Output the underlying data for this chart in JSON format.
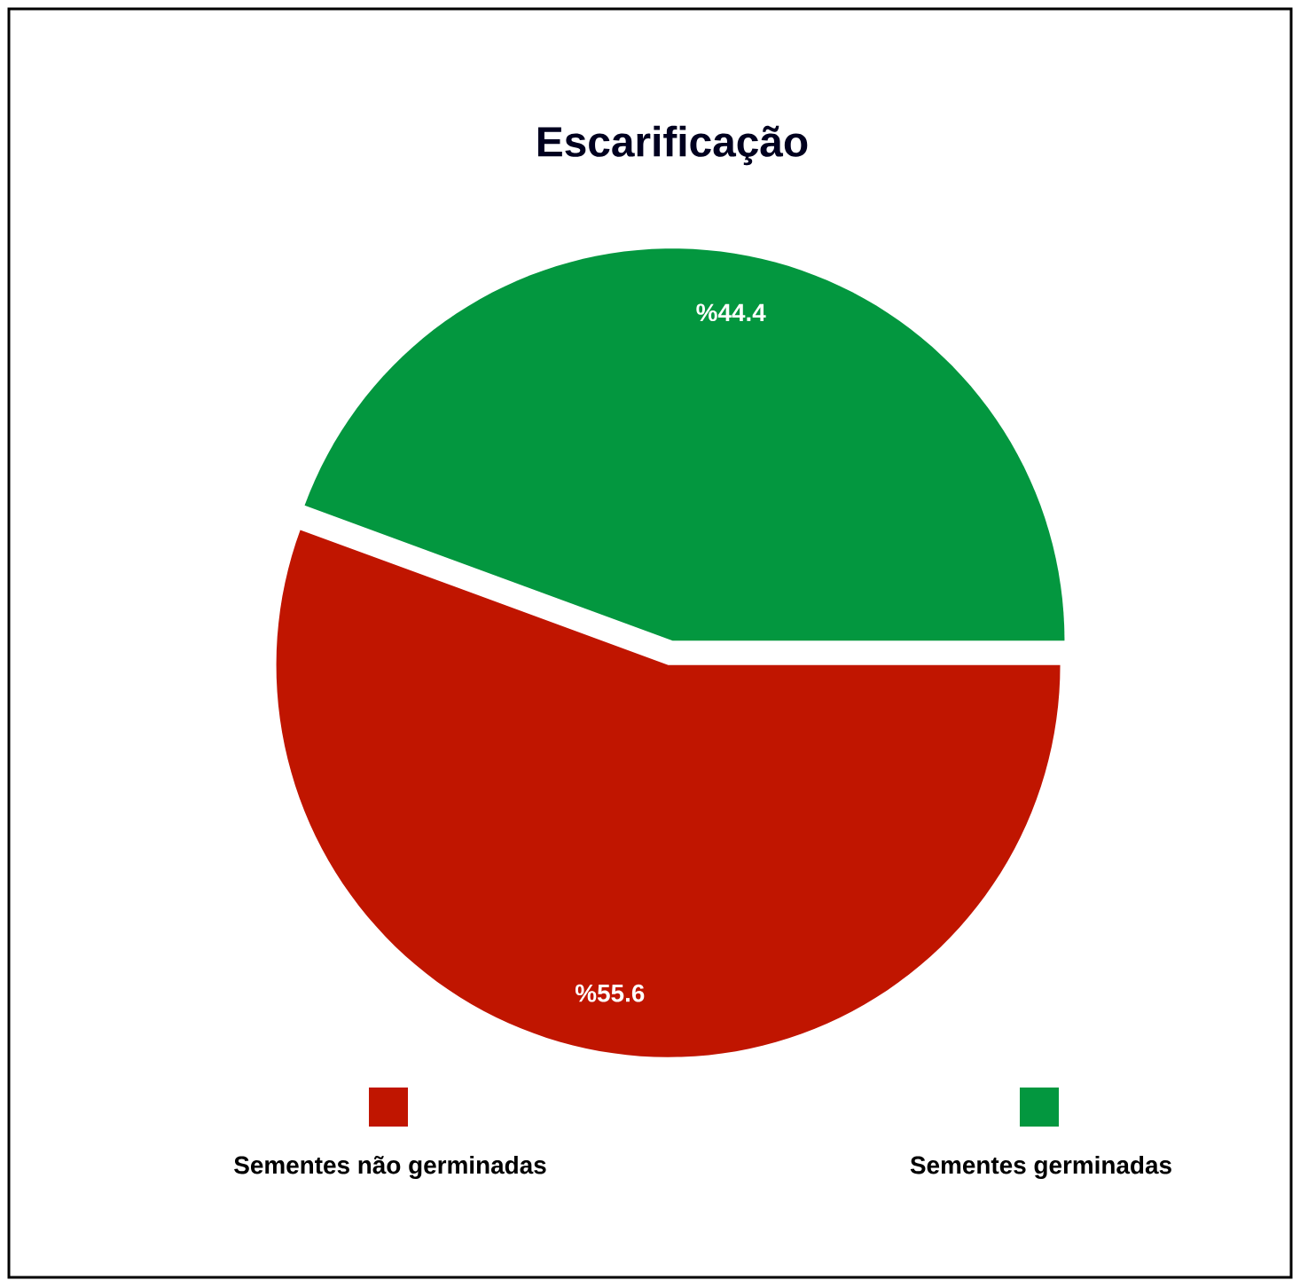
{
  "chart_data": {
    "type": "pie",
    "title": "Escarificação",
    "categories": [
      "Sementes não germinadas",
      "Sementes germinadas"
    ],
    "values": [
      55.6,
      44.4
    ],
    "colors": [
      "#c01500",
      "#03973f"
    ],
    "value_labels": [
      "%55.6",
      "%44.4"
    ],
    "legend": "bottom"
  }
}
